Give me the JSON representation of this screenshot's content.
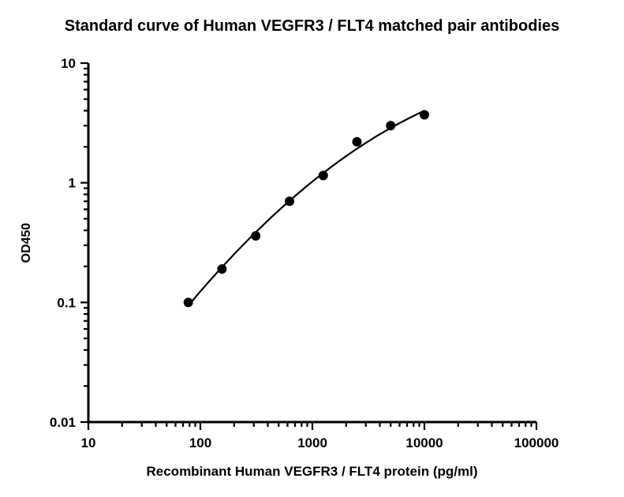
{
  "chart_data": {
    "type": "scatter",
    "title": "Standard curve of Human VEGFR3 / FLT4 matched pair antibodies",
    "xlabel": "Recombinant Human VEGFR3 / FLT4 protein (pg/ml)",
    "ylabel": "OD450",
    "xscale": "log",
    "yscale": "log",
    "xlim": [
      10,
      100000
    ],
    "ylim": [
      0.01,
      10
    ],
    "x_ticks": [
      10,
      100,
      1000,
      10000,
      100000
    ],
    "x_tick_labels": [
      "10",
      "100",
      "1000",
      "10000",
      "100000"
    ],
    "y_ticks": [
      0.01,
      0.1,
      1,
      10
    ],
    "y_tick_labels": [
      "0.01",
      "0.1",
      "1",
      "10"
    ],
    "grid": false,
    "legend": "none",
    "fitted_curve": true,
    "series": [
      {
        "x": [
          78,
          156,
          312,
          625,
          1250,
          2500,
          5000,
          10000
        ],
        "y": [
          0.1,
          0.19,
          0.36,
          0.7,
          1.15,
          2.2,
          3.0,
          3.7
        ]
      }
    ],
    "colors": {
      "marker": "#000000",
      "line": "#000000"
    }
  }
}
